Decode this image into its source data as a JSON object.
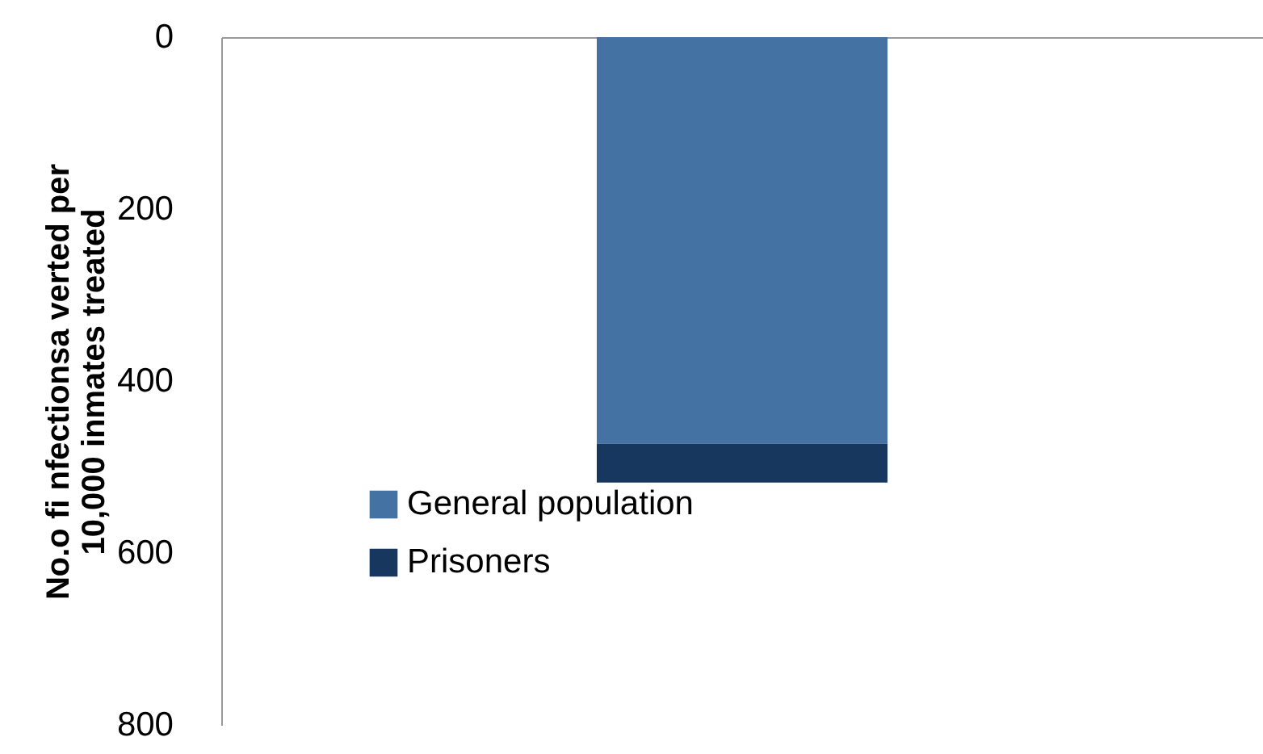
{
  "chart_data": {
    "type": "bar",
    "stacked": true,
    "ylabel": "No.o fi nfectionsa verted per 10,000 inmates treated",
    "categories": [
      null
    ],
    "series": [
      {
        "name": "General population",
        "color": "#4472a2",
        "values": [
          473
        ]
      },
      {
        "name": "Prisoners",
        "color": "#17375e",
        "values": [
          45
        ]
      }
    ],
    "ylim": [
      800,
      0
    ],
    "yticks": [
      0,
      200,
      400,
      600,
      800
    ],
    "legend": "bottom left",
    "grid": false
  }
}
